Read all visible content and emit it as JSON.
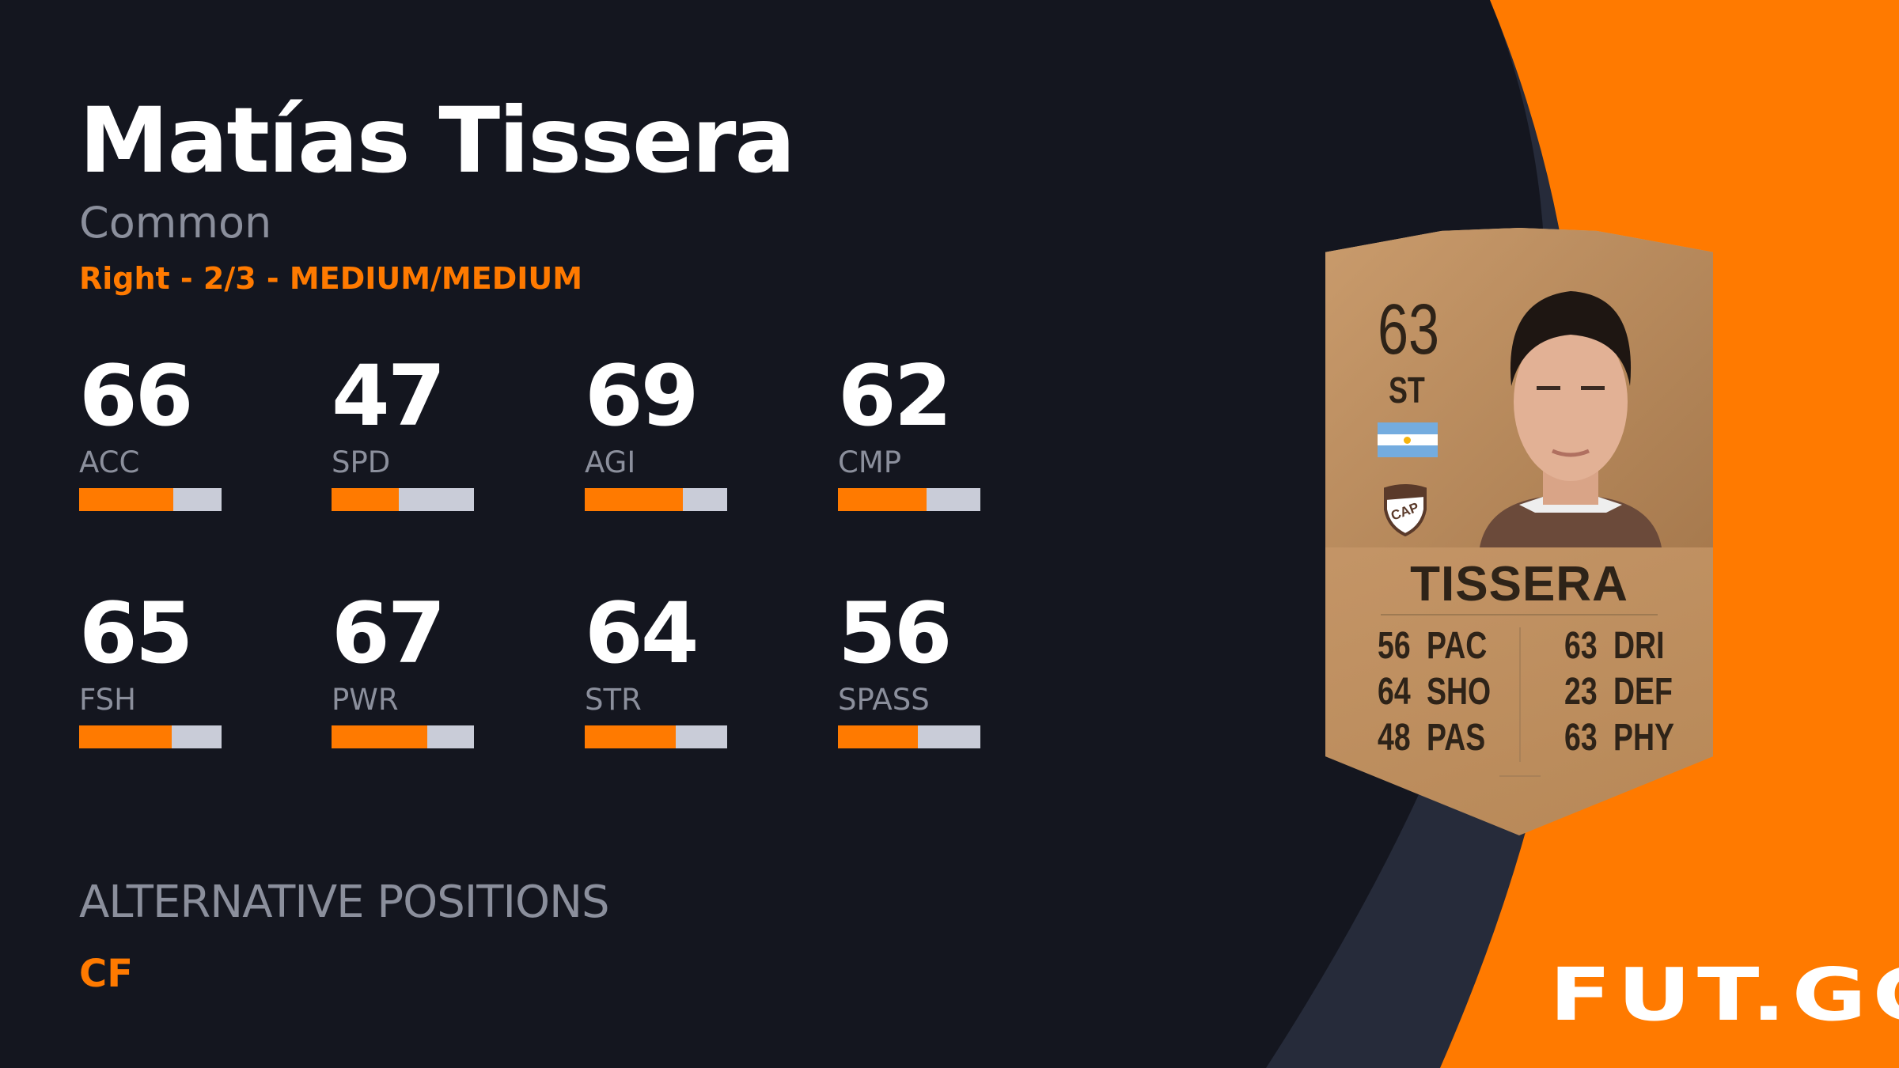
{
  "player": {
    "name": "Matías Tissera",
    "rarity": "Common",
    "traits": "Right - 2/3 - MEDIUM/MEDIUM"
  },
  "stats": [
    {
      "label": "ACC",
      "value": "66",
      "fill": 66
    },
    {
      "label": "SPD",
      "value": "47",
      "fill": 47
    },
    {
      "label": "AGI",
      "value": "69",
      "fill": 69
    },
    {
      "label": "CMP",
      "value": "62",
      "fill": 62
    },
    {
      "label": "FSH",
      "value": "65",
      "fill": 65
    },
    {
      "label": "PWR",
      "value": "67",
      "fill": 67
    },
    {
      "label": "STR",
      "value": "64",
      "fill": 64
    },
    {
      "label": "SPASS",
      "value": "56",
      "fill": 56
    }
  ],
  "alternative_positions": {
    "heading": "ALTERNATIVE POSITIONS",
    "value": "CF"
  },
  "card": {
    "rating": "63",
    "position": "ST",
    "name": "TISSERA",
    "nation_flag": "argentina-flag",
    "club_badge": "CAP",
    "left_stats": [
      {
        "value": "56",
        "label": "PAC"
      },
      {
        "value": "64",
        "label": "SHO"
      },
      {
        "value": "48",
        "label": "PAS"
      }
    ],
    "right_stats": [
      {
        "value": "63",
        "label": "DRI"
      },
      {
        "value": "23",
        "label": "DEF"
      },
      {
        "value": "63",
        "label": "PHY"
      }
    ]
  },
  "brand": {
    "logo": "FUT.GG"
  },
  "colors": {
    "accent": "#ff7a00",
    "background": "#14161f",
    "band": "#262b3a",
    "bar_empty": "#c9ccd8"
  }
}
